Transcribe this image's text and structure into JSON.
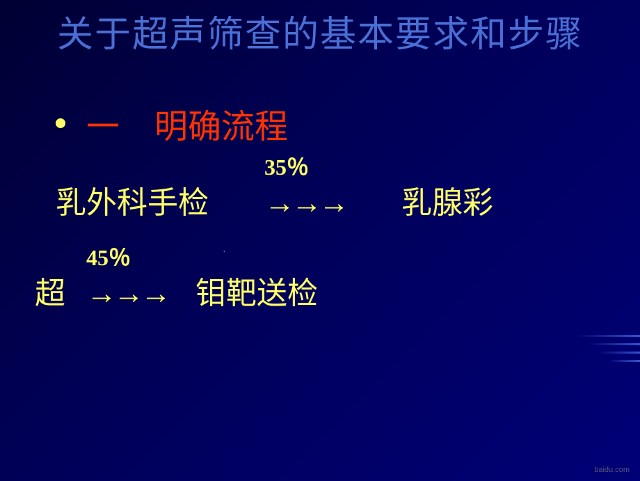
{
  "title": "关于超声筛查的基本要求和步骤",
  "section": {
    "number": "一",
    "heading": "明确流程"
  },
  "flow": {
    "step1": "乳外科手检",
    "percent1": "35％",
    "arrows": "→→→",
    "step2": "乳腺彩",
    "step3": "超",
    "percent2": "45％",
    "step4": "钼靶送检"
  },
  "watermark": "baidu.com",
  "colors": {
    "title_color": "#4a6fd4",
    "heading_color": "#ff3300",
    "body_color": "#ffff66",
    "background_start": "#000033",
    "background_end": "#000077"
  },
  "typography": {
    "title_fontsize": 52,
    "heading_fontsize": 48,
    "body_fontsize": 44,
    "percent_fontsize": 32
  }
}
